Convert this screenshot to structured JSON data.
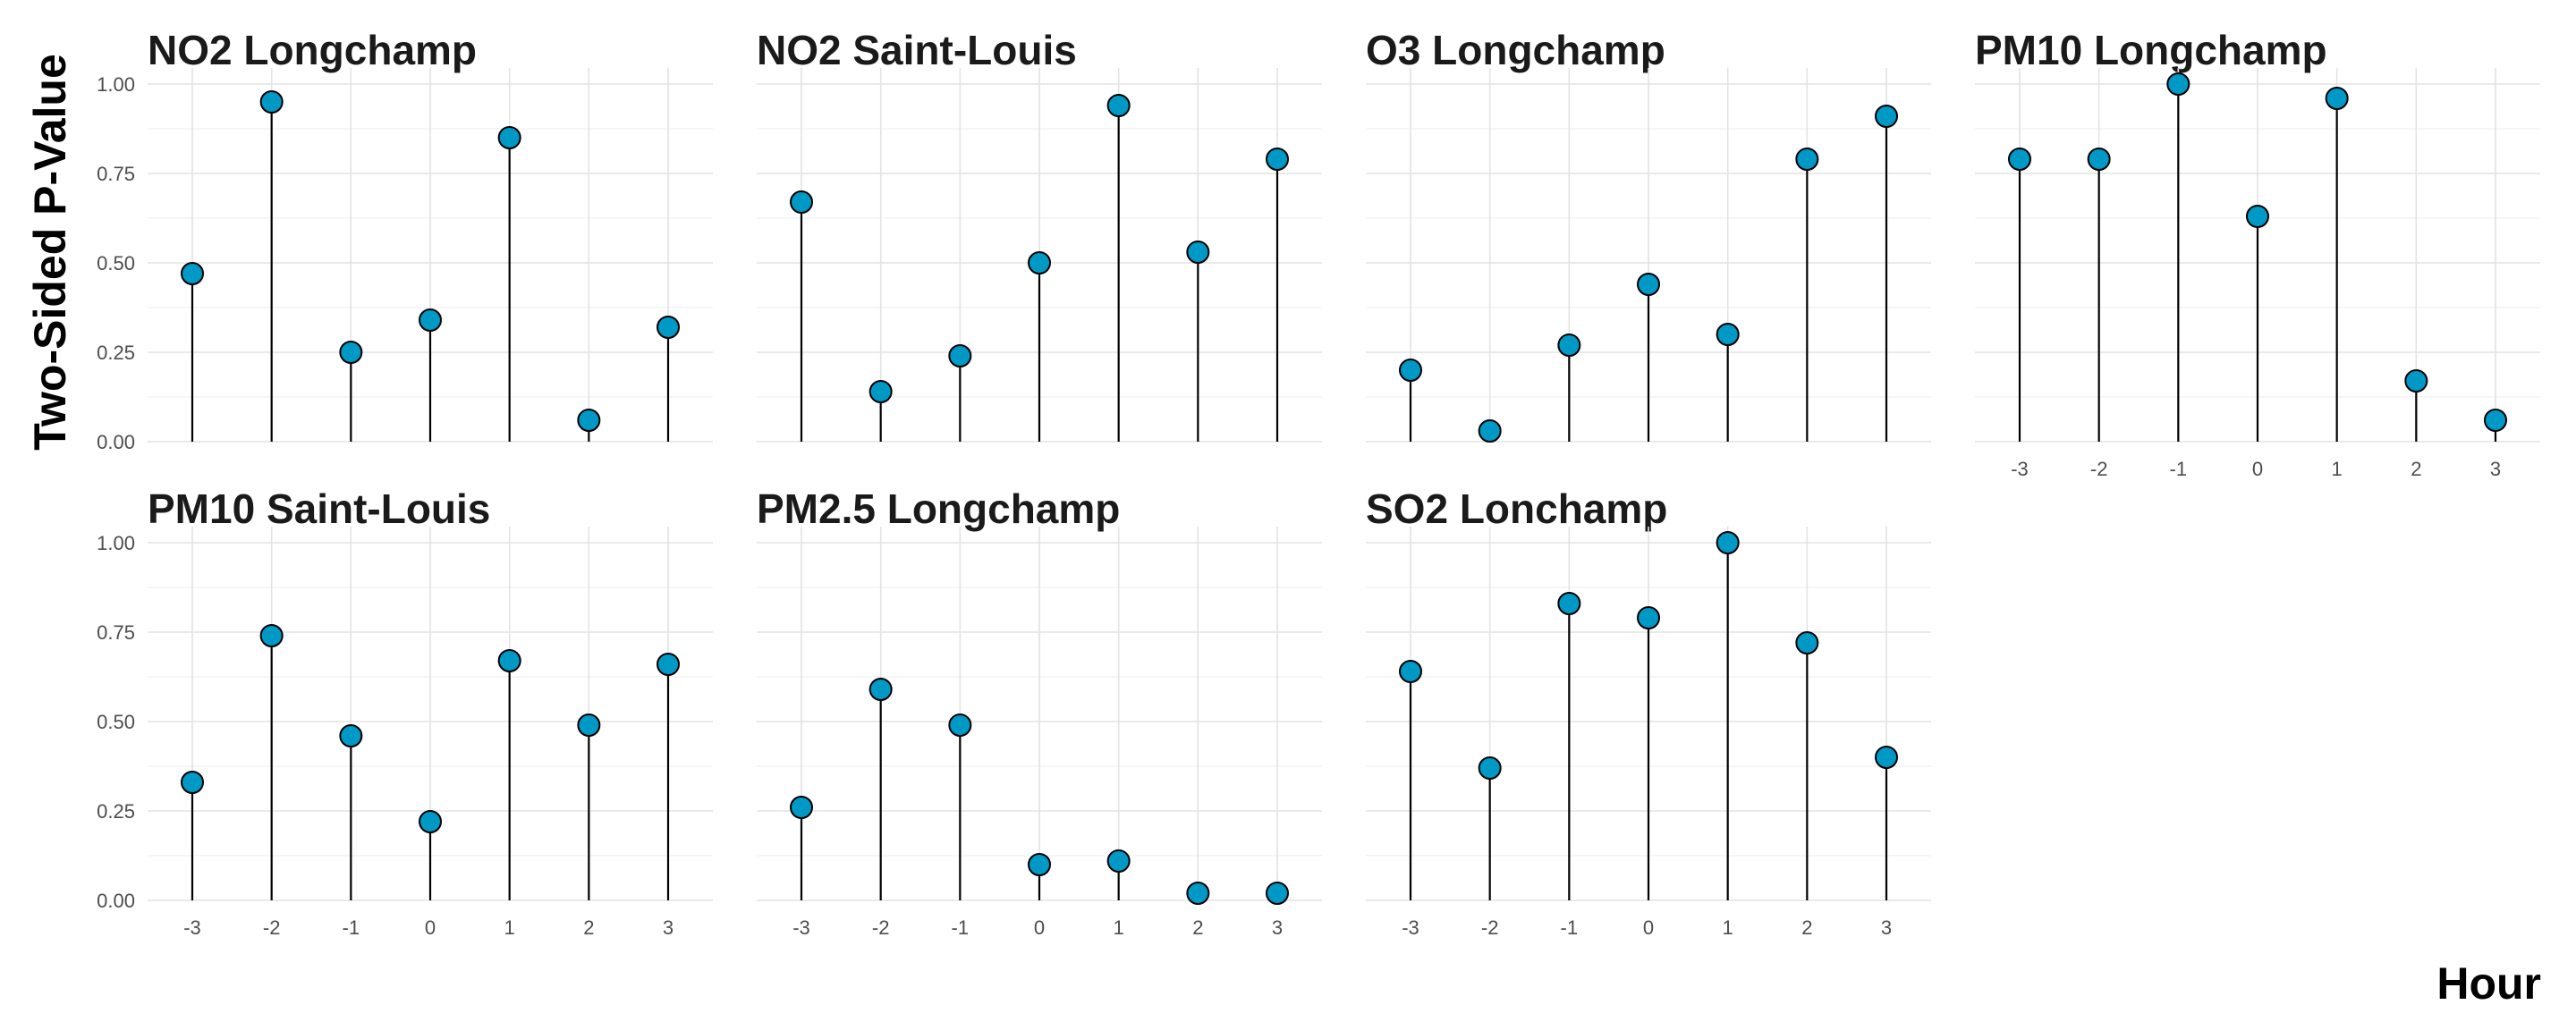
{
  "chart_data": {
    "type": "scatter",
    "style": "lollipop",
    "xlabel": "Hour",
    "ylabel": "Two-Sided P-Value",
    "x": [
      -3,
      -2,
      -1,
      0,
      1,
      2,
      3
    ],
    "x_tick_labels": [
      "-3",
      "-2",
      "-1",
      "0",
      "1",
      "2",
      "3"
    ],
    "y_ticks": [
      0.0,
      0.25,
      0.5,
      0.75,
      1.0
    ],
    "y_tick_labels": [
      "0.00",
      "0.25",
      "0.50",
      "0.75",
      "1.00"
    ],
    "ylim": [
      0,
      1
    ],
    "grid": true,
    "point_color": "#0099c6",
    "stem_color": "#000000",
    "panels": [
      {
        "title": "NO2 Longchamp",
        "values": [
          0.47,
          0.95,
          0.25,
          0.34,
          0.85,
          0.06,
          0.32
        ]
      },
      {
        "title": "NO2 Saint-Louis",
        "values": [
          0.67,
          0.14,
          0.24,
          0.5,
          0.94,
          0.53,
          0.79
        ]
      },
      {
        "title": "O3 Longchamp",
        "values": [
          0.2,
          0.03,
          0.27,
          0.44,
          0.3,
          0.79,
          0.91
        ]
      },
      {
        "title": "PM10 Longchamp",
        "values": [
          0.79,
          0.79,
          1.0,
          0.63,
          0.96,
          0.17,
          0.06
        ]
      },
      {
        "title": "PM10 Saint-Louis",
        "values": [
          0.33,
          0.74,
          0.46,
          0.22,
          0.67,
          0.49,
          0.66
        ]
      },
      {
        "title": "PM2.5 Longchamp",
        "values": [
          0.26,
          0.59,
          0.49,
          0.1,
          0.11,
          0.02,
          0.02
        ]
      },
      {
        "title": "SO2 Lonchamp",
        "values": [
          0.64,
          0.37,
          0.83,
          0.79,
          1.0,
          0.72,
          0.4
        ]
      }
    ]
  }
}
